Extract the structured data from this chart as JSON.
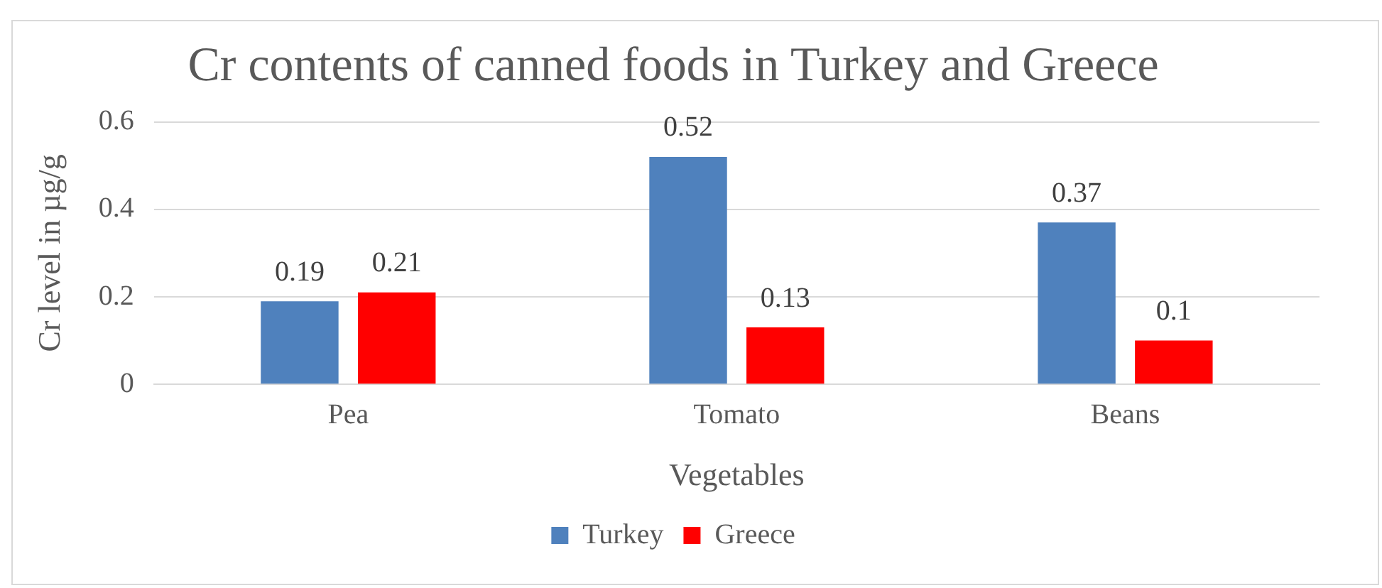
{
  "chart_data": {
    "type": "bar",
    "title": "Cr contents of canned foods in Turkey and Greece",
    "xlabel": "Vegetables",
    "ylabel": "Cr level in µg/g",
    "categories": [
      "Pea",
      "Tomato",
      "Beans"
    ],
    "series": [
      {
        "name": "Turkey",
        "color": "#4f81bd",
        "values": [
          0.19,
          0.52,
          0.37
        ]
      },
      {
        "name": "Greece",
        "color": "#ff0000",
        "values": [
          0.21,
          0.13,
          0.1
        ]
      }
    ],
    "ylim": [
      0,
      0.6
    ],
    "yticks": [
      0,
      0.2,
      0.4,
      0.6
    ],
    "grid": "y",
    "legend": "bottom",
    "data_labels": true
  }
}
